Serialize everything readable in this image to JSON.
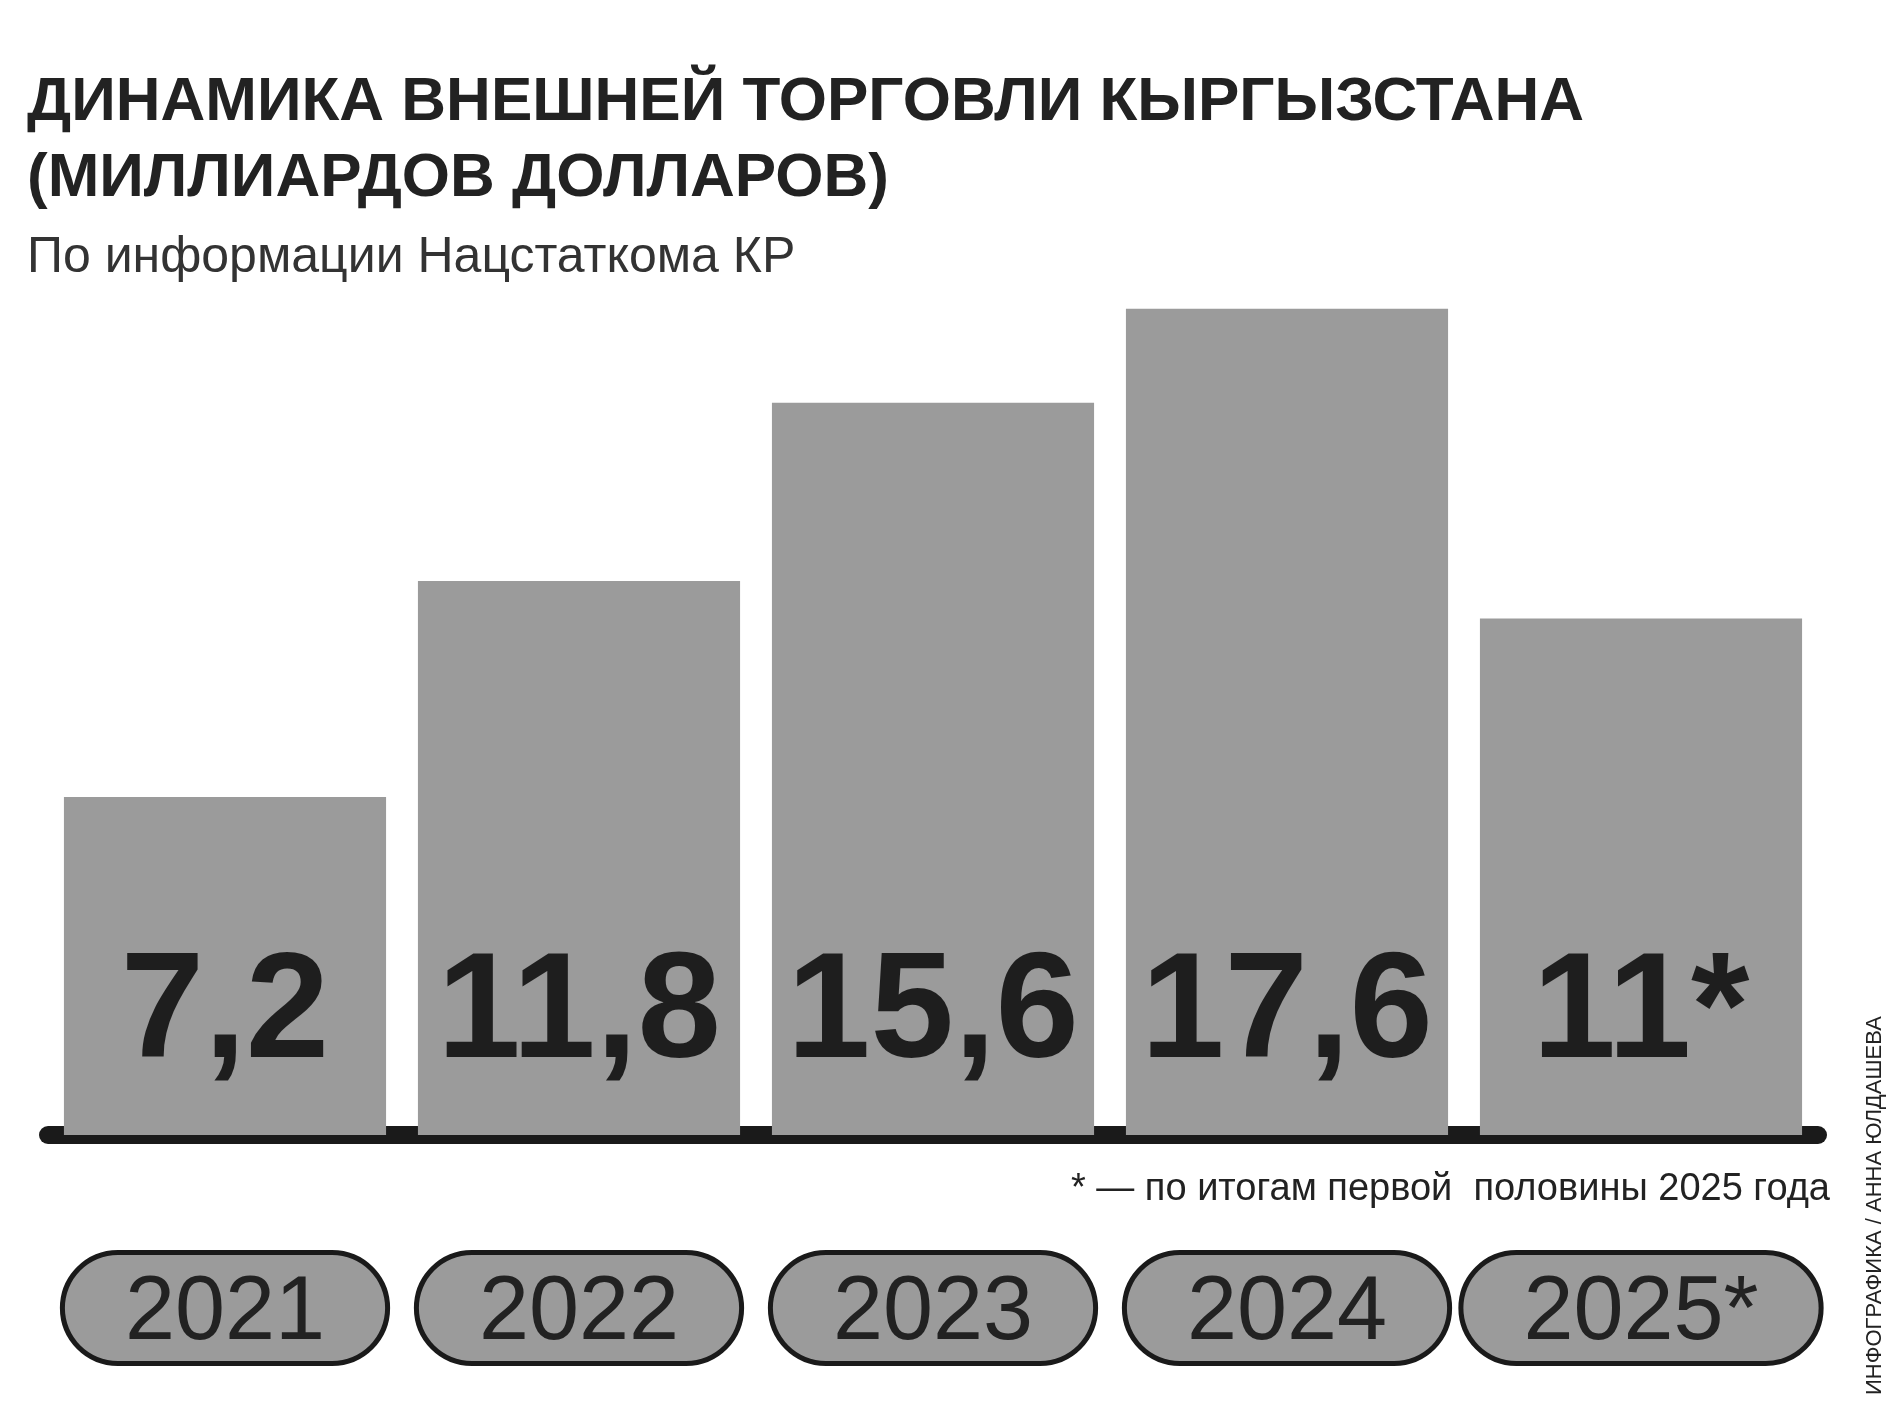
{
  "chart_data": {
    "type": "bar",
    "title": "ДИНАМИКА ВНЕШНЕЙ ТОРГОВЛИ КЫРГЫЗСТАНА\n(МИЛЛИАРДОВ ДОЛЛАРОВ)",
    "subtitle": "По информации Нацстаткома КР",
    "categories": [
      "2021",
      "2022",
      "2023",
      "2024",
      "2025*"
    ],
    "values": [
      7.2,
      11.8,
      15.6,
      17.6,
      11
    ],
    "value_labels": [
      "7,2",
      "11,8",
      "15,6",
      "17,6",
      "11*"
    ],
    "color": "#9b9b9b",
    "annotations": [
      "* — по итогам первой  половины 2025 года",
      "ИНФОГРАФИКА / АННА ЮЛДАШЕВА"
    ]
  }
}
